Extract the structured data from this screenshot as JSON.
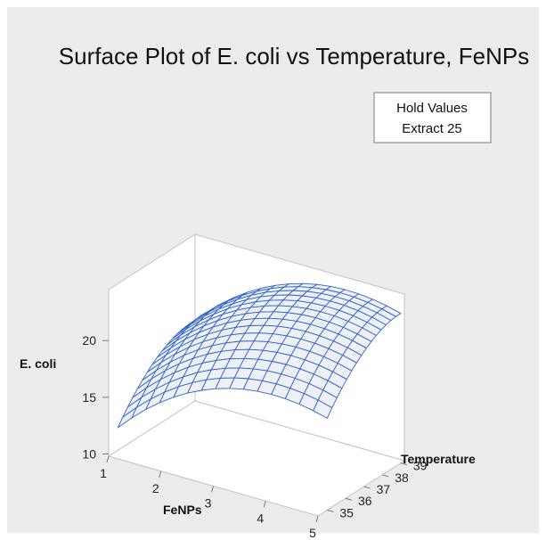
{
  "chart_data": {
    "type": "surface",
    "title": "Surface Plot of E. coli vs Temperature, FeNPs",
    "hold_values": {
      "header": "Hold Values",
      "items": [
        {
          "name": "Extract",
          "value": 25
        }
      ],
      "text": "Extract 25"
    },
    "x": {
      "label": "FeNPs",
      "range": [
        1,
        5
      ],
      "ticks": [
        "1",
        "2",
        "3",
        "4",
        "5"
      ]
    },
    "y": {
      "label": "Temperature",
      "range": [
        34.5,
        39.2
      ],
      "ticks": [
        "35",
        "36",
        "37",
        "38",
        "39"
      ]
    },
    "z": {
      "label": "E. coli",
      "range": [
        9.8,
        24.5
      ],
      "ticks": [
        "10",
        "15",
        "20"
      ]
    },
    "surface": {
      "fenps": [
        1,
        2,
        3,
        4,
        5
      ],
      "temperature": [
        35,
        36,
        37,
        38,
        39
      ],
      "ecoli": [
        [
          11.8,
          15.7,
          17.9,
          18.6,
          17.9
        ],
        [
          14.0,
          17.9,
          20.1,
          20.8,
          20.1
        ],
        [
          15.6,
          19.5,
          21.7,
          22.4,
          21.7
        ],
        [
          16.6,
          20.5,
          22.7,
          23.4,
          22.7
        ],
        [
          16.9,
          20.8,
          23.0,
          23.7,
          23.0
        ]
      ]
    },
    "colors": {
      "background": "#ececec",
      "surface_fill": "#eef0f5",
      "mesh_line": "#2f63c6",
      "box_line": "#c2c2c2",
      "panel_fill": "#ffffff"
    }
  }
}
